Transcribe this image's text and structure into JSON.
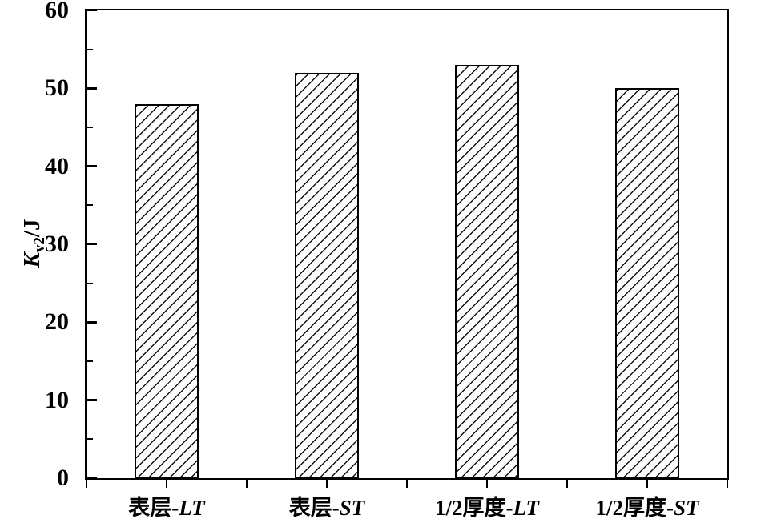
{
  "chart_data": {
    "type": "bar",
    "title": "",
    "xlabel": "",
    "ylabel": {
      "main": "K",
      "sub": "v2",
      "suffix": "/J"
    },
    "ylabel_text": "Kv2/J",
    "ylim": [
      0,
      60
    ],
    "y_major_ticks": [
      0,
      10,
      20,
      30,
      40,
      50,
      60
    ],
    "y_minor_ticks": [
      5,
      15,
      25,
      35,
      45,
      55
    ],
    "grid": false,
    "legend": null,
    "bar_fill": "#ffffff",
    "bar_hatch": "diagonal-forward-slash",
    "line_color": "#000000",
    "background_color": "#ffffff",
    "categories": [
      {
        "label": "表层-LT",
        "prefix": "表层-",
        "suffix": "LT"
      },
      {
        "label": "表层-ST",
        "prefix": "表层-",
        "suffix": "ST"
      },
      {
        "label": "1/2厚度-LT",
        "prefix": "1/2厚度-",
        "suffix": "LT"
      },
      {
        "label": "1/2厚度-ST",
        "prefix": "1/2厚度-",
        "suffix": "ST"
      }
    ],
    "values": [
      48,
      52,
      53,
      50
    ]
  }
}
